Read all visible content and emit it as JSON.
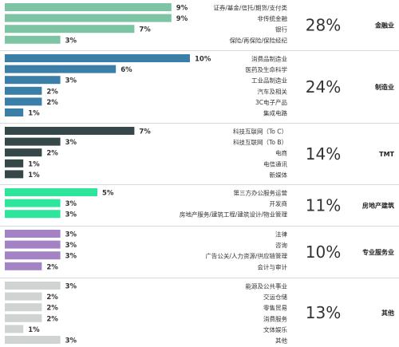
{
  "chart_data": {
    "type": "bar",
    "orientation": "horizontal",
    "value_unit": "%",
    "groups": [
      {
        "name": "金融业",
        "total": "28%",
        "color": "#7cc4a4",
        "items": [
          {
            "label": "证券/基金/信托/期货/支付类",
            "value": 9
          },
          {
            "label": "非传统金融",
            "value": 9
          },
          {
            "label": "银行",
            "value": 7
          },
          {
            "label": "保险/再保险/保险经纪",
            "value": 3
          }
        ]
      },
      {
        "name": "制造业",
        "total": "24%",
        "color": "#3b7fa8",
        "items": [
          {
            "label": "消费品制造业",
            "value": 10
          },
          {
            "label": "医药及生命科学",
            "value": 6
          },
          {
            "label": "工业品制造业",
            "value": 3
          },
          {
            "label": "汽车及相关",
            "value": 2
          },
          {
            "label": "3C电子产品",
            "value": 2
          },
          {
            "label": "集成电路",
            "value": 1
          }
        ]
      },
      {
        "name": "TMT",
        "total": "14%",
        "color": "#36474a",
        "items": [
          {
            "label": "科技互联网（To C）",
            "value": 7
          },
          {
            "label": "科技互联网（To B）",
            "value": 3
          },
          {
            "label": "电商",
            "value": 2
          },
          {
            "label": "电信通讯",
            "value": 1
          },
          {
            "label": "新媒体",
            "value": 1
          }
        ]
      },
      {
        "name": "房地产建筑",
        "total": "11%",
        "color": "#2ee59c",
        "items": [
          {
            "label": "第三方办公服务运营",
            "value": 5
          },
          {
            "label": "开发商",
            "value": 3
          },
          {
            "label": "房地产服务/建筑工程/建筑设计/物业管理",
            "value": 3
          }
        ]
      },
      {
        "name": "专业服务业",
        "total": "10%",
        "color": "#a383c4",
        "items": [
          {
            "label": "法律",
            "value": 3
          },
          {
            "label": "咨询",
            "value": 3
          },
          {
            "label": "广告公关/人力资源/供应链管理",
            "value": 3
          },
          {
            "label": "会计与审计",
            "value": 2
          }
        ]
      },
      {
        "name": "其他",
        "total": "13%",
        "color": "#cfd4d3",
        "items": [
          {
            "label": "能源及公共事业",
            "value": 3
          },
          {
            "label": "交运仓储",
            "value": 2
          },
          {
            "label": "零售贸易",
            "value": 2
          },
          {
            "label": "消费服务",
            "value": 2
          },
          {
            "label": "文体娱乐",
            "value": 1
          },
          {
            "label": "其他",
            "value": 3
          }
        ]
      }
    ]
  }
}
